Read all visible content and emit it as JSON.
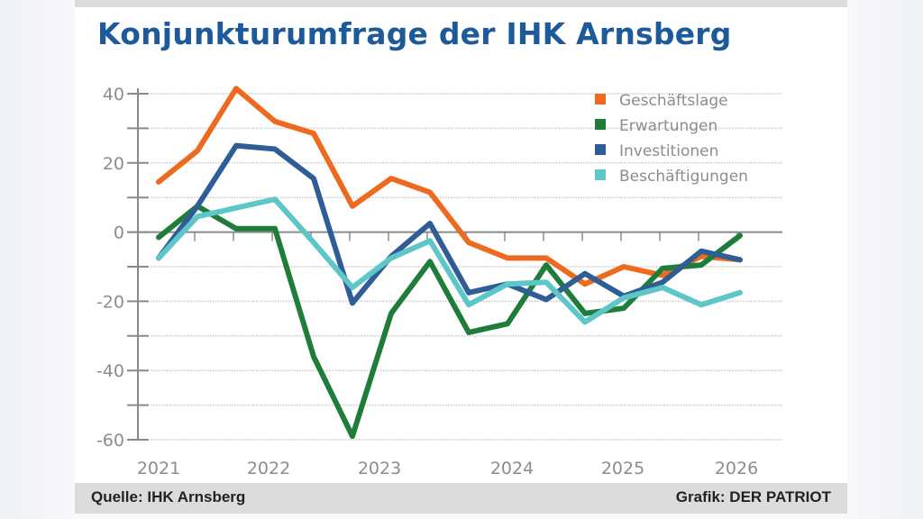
{
  "title": "Konjunkturumfrage der IHK Arnsberg",
  "footer": {
    "source": "Quelle: IHK Arnsberg",
    "credit": "Grafik: DER PATRIOT"
  },
  "chart_data": {
    "type": "line",
    "title": "Konjunkturumfrage der IHK Arnsberg",
    "xlabel": "",
    "ylabel": "",
    "ylim": [
      -60,
      40
    ],
    "yticks": [
      40,
      20,
      0,
      -20,
      -40,
      -60
    ],
    "yminor_ticks": [
      30,
      10,
      -10,
      -30,
      -50
    ],
    "xtick_labels": [
      "2021",
      "2022",
      "2023",
      "2024",
      "2025",
      "2026"
    ],
    "x": [
      "2021-1",
      "2021-2",
      "2021-3",
      "2022-1",
      "2022-2",
      "2022-3",
      "2023-1",
      "2023-2",
      "2023-3",
      "2024-1",
      "2024-2",
      "2024-3",
      "2025-1",
      "2025-2",
      "2025-3",
      "2026-1"
    ],
    "grid": true,
    "legend_position": "top-right",
    "series": [
      {
        "name": "Geschäftslage",
        "color": "#ee6a1f",
        "values": [
          14.5,
          23.5,
          41.5,
          32,
          28.5,
          7.5,
          15.5,
          11.5,
          -3,
          -7.5,
          -7.5,
          -15,
          -10,
          -12.5,
          -7,
          -8
        ]
      },
      {
        "name": "Erwartungen",
        "color": "#1f7d3a",
        "values": [
          -1.5,
          7.5,
          1,
          1,
          -36,
          -59,
          -23.5,
          -8.5,
          -29,
          -26.5,
          -9.5,
          -23.5,
          -22,
          -10.5,
          -9.5,
          -1
        ]
      },
      {
        "name": "Investitionen",
        "color": "#2f5e97",
        "values": [
          -7.5,
          7.5,
          25,
          24,
          15.5,
          -20.5,
          -7,
          2.5,
          -17.5,
          -15,
          -19.5,
          -12,
          -18.5,
          -14.5,
          -5.5,
          -8
        ]
      },
      {
        "name": "Beschäftigungen",
        "color": "#5cc6c8",
        "values": [
          -7.5,
          4.5,
          7,
          9.5,
          -3,
          -16,
          -7.5,
          -2.5,
          -21,
          -15,
          -14.5,
          -26,
          -19,
          -16,
          -21,
          -17.5
        ]
      }
    ]
  }
}
